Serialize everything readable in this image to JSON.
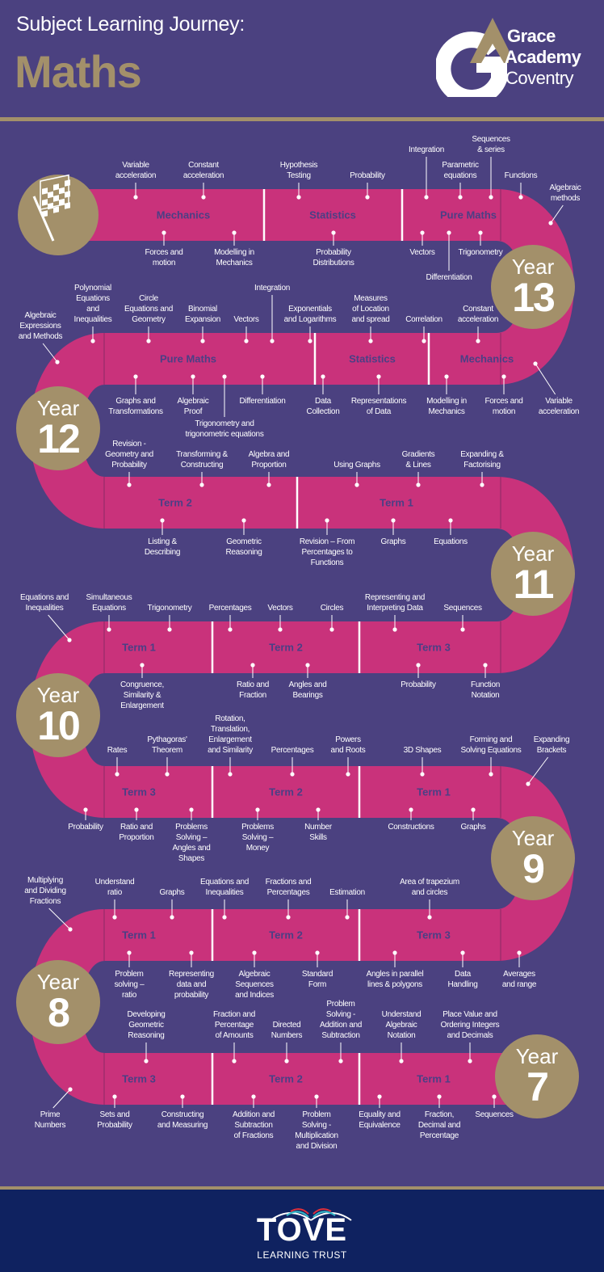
{
  "header": {
    "subtitle": "Subject Learning Journey:",
    "title": "Maths"
  },
  "school_logo": {
    "line1": "Grace",
    "line2": "Academy",
    "line3": "Coventry"
  },
  "colors": {
    "background": "#4b4180",
    "road": "#c9327b",
    "gold": "#a3906a",
    "footer": "#0f2260",
    "section_text": "#4b3f85"
  },
  "start_icon": "checkered-flag-icon",
  "rows": [
    {
      "year": "13",
      "sections": [
        "Mechanics",
        "Statistics",
        "Pure Maths"
      ],
      "labels": [
        "Variable\nacceleration",
        "Constant\nacceleration",
        "Hypothesis\nTesting",
        "Probability",
        "Integration",
        "Parametric\nequations",
        "Sequences\n& series",
        "Functions",
        "Algebraic\nmethods",
        "Forces and\nmotion",
        "Modelling in\nMechanics",
        "Probability\nDistributions",
        "Vectors",
        "Differentiation",
        "Trigonometry"
      ]
    },
    {
      "year": "12",
      "sections": [
        "Pure Maths",
        "Statistics",
        "Mechanics"
      ],
      "labels": [
        "Algebraic\nExpressions\nand Methods",
        "Polynomial\nEquations\nand\nInequalities",
        "Circle\nEquations and\nGeometry",
        "Binomial\nExpansion",
        "Vectors",
        "Integration",
        "Exponentials\nand Logarithms",
        "Measures\nof Location\nand spread",
        "Correlation",
        "Constant\nacceleration",
        "Graphs and\nTransformations",
        "Algebraic\nProof",
        "Trigonometry and\ntrigonometric equations",
        "Differentiation",
        "Data\nCollection",
        "Representations\nof Data",
        "Modelling in\nMechanics",
        "Forces and\nmotion",
        "Variable\nacceleration"
      ]
    },
    {
      "year": "11",
      "sections": [
        "Term 2",
        "Term 1"
      ],
      "labels": [
        "Revision -\nGeometry and\nProbability",
        "Transforming &\nConstructing",
        "Algebra and\nProportion",
        "Using Graphs",
        "Gradients\n& Lines",
        "Expanding &\nFactorising",
        "Listing &\nDescribing",
        "Geometric\nReasoning",
        "Revision – From\nPercentages to\nFunctions",
        "Graphs",
        "Equations"
      ]
    },
    {
      "year": "10",
      "sections": [
        "Term 1",
        "Term 2",
        "Term 3"
      ],
      "labels": [
        "Equations and\nInequalities",
        "Simultaneous\nEquations",
        "Trigonometry",
        "Percentages",
        "Vectors",
        "Circles",
        "Representing and\nInterpreting Data",
        "Sequences",
        "Congruence,\nSimilarity &\nEnlargement",
        "Ratio and\nFraction",
        "Angles and\nBearings",
        "Probability",
        "Function\nNotation"
      ]
    },
    {
      "year": "9",
      "sections": [
        "Term 3",
        "Term 2",
        "Term 1"
      ],
      "labels": [
        "Rates",
        "Pythagoras'\nTheorem",
        "Rotation,\nTranslation,\nEnlargement\nand Similarity",
        "Percentages",
        "Powers\nand Roots",
        "3D Shapes",
        "Forming and\nSolving Equations",
        "Expanding\nBrackets",
        "Probability",
        "Ratio and\nProportion",
        "Problems\nSolving –\nAngles and\nShapes",
        "Problems\nSolving –\nMoney",
        "Number\nSkills",
        "Constructions",
        "Graphs"
      ]
    },
    {
      "year": "8",
      "sections": [
        "Term 1",
        "Term 2",
        "Term 3"
      ],
      "labels": [
        "Multiplying\nand Dividing\nFractions",
        "Understand\nratio",
        "Graphs",
        "Equations and\nInequalities",
        "Fractions and\nPercentages",
        "Estimation",
        "Area of trapezium\nand circles",
        "Problem\nsolving –\nratio",
        "Representing\ndata and\nprobability",
        "Algebraic\nSequences\nand Indices",
        "Standard\nForm",
        "Angles in parallel\nlines & polygons",
        "Data\nHandling",
        "Averages\nand range"
      ]
    },
    {
      "year": "7",
      "sections": [
        "Term 3",
        "Term 2",
        "Term 1"
      ],
      "labels": [
        "Developing\nGeometric\nReasoning",
        "Fraction and\nPercentage\nof Amounts",
        "Directed\nNumbers",
        "Problem\nSolving -\nAddition and\nSubtraction",
        "Understand\nAlgebraic\nNotation",
        "Place Value and\nOrdering Integers\nand Decimals",
        "Prime\nNumbers",
        "Sets and\nProbability",
        "Constructing\nand Measuring",
        "Addition and\nSubtraction\nof Fractions",
        "Problem\nSolving -\nMultiplication\nand Division",
        "Equality and\nEquivalence",
        "Fraction,\nDecimal and\nPercentage",
        "Sequences"
      ]
    }
  ],
  "year_word": "Year",
  "footer": {
    "brand": "TOVE",
    "subtitle": "LEARNING TRUST"
  }
}
